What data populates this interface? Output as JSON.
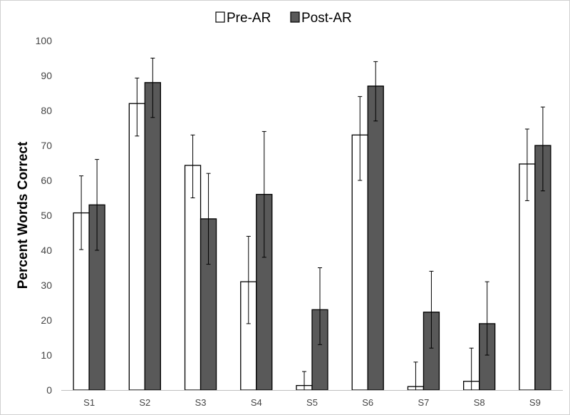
{
  "chart_data": {
    "type": "bar",
    "title": "",
    "xlabel": "",
    "ylabel": "Percent Words Correct",
    "ylim": [
      0,
      100
    ],
    "yticks": [
      0,
      10,
      20,
      30,
      40,
      50,
      60,
      70,
      80,
      90,
      100
    ],
    "grid": false,
    "legend_position": "top-center",
    "categories": [
      "S1",
      "S2",
      "S3",
      "S4",
      "S5",
      "S6",
      "S7",
      "S8",
      "S9"
    ],
    "series": [
      {
        "name": "Pre-AR",
        "fill": "#ffffff",
        "stroke": "#000000",
        "values": [
          50.7,
          82,
          64.3,
          31,
          1.3,
          73,
          1,
          2.5,
          64.7
        ],
        "err_upper": [
          61.3,
          89.3,
          73,
          44,
          5.3,
          84,
          8,
          12,
          74.7
        ],
        "err_lower": [
          40.2,
          72.7,
          55,
          19,
          0,
          60,
          0,
          0,
          54.2
        ]
      },
      {
        "name": "Post-AR",
        "fill": "#595959",
        "stroke": "#000000",
        "values": [
          53,
          88,
          49,
          56,
          23,
          87,
          22.3,
          19,
          70
        ],
        "err_upper": [
          66,
          95,
          62,
          74,
          35,
          94,
          34,
          31,
          81
        ],
        "err_lower": [
          40,
          78,
          36,
          38,
          13,
          77,
          12,
          10,
          57
        ]
      }
    ]
  }
}
